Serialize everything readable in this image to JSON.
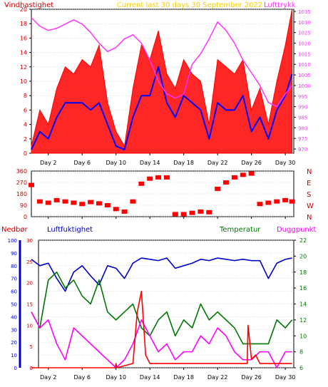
{
  "header": {
    "title": "Current last 30 days 30 September 2022",
    "left_label": "Vindhastighet",
    "right_label": "Lufttrykk"
  },
  "mid_labels": {
    "nedbor": "Nedbør",
    "luftfuktighet": "Luftfuktighet",
    "temperatur": "Temperatur",
    "duggpunkt": "Duggpunkt"
  },
  "colors": {
    "wind_gust": "#ff0000",
    "wind_avg": "#0000ff",
    "pressure": "#ff33ff",
    "direction": "#ff0000",
    "rain": "#ff0000",
    "humidity": "#0000cc",
    "temperature": "#007700",
    "dewpoint": "#ff00ff",
    "title": "#ffcc00",
    "axis": "#000000",
    "grid": "#bbbbbb"
  },
  "chart_data": [
    {
      "type": "line",
      "panel": "wind-pressure",
      "x_ticks": [
        "Day 2",
        "Day 6",
        "Day 10",
        "Day 14",
        "Day 18",
        "Day 22",
        "Day 26",
        "Day 30"
      ],
      "x_tick_days": [
        2,
        6,
        10,
        14,
        18,
        22,
        26,
        30
      ],
      "xlim": [
        0,
        31
      ],
      "y_left": {
        "label": "Vindhastighet",
        "ticks": [
          "0",
          "2",
          "4",
          "6",
          "8",
          "10",
          "12",
          "14",
          "16",
          "18",
          "20"
        ],
        "ylim": [
          0,
          20
        ]
      },
      "y_right": {
        "label": "Lufttrykk",
        "ticks": [
          "970",
          "975",
          "980",
          "985",
          "990",
          "995",
          "1000",
          "1005",
          "1010",
          "1015",
          "1020",
          "1025",
          "1030",
          "1035"
        ],
        "ylim": [
          968,
          1036
        ]
      },
      "series": [
        {
          "name": "Vindhastighet (gust)",
          "color": "#ff0000",
          "x": [
            0,
            1,
            2,
            3,
            4,
            5,
            6,
            7,
            8,
            9,
            10,
            11,
            12,
            13,
            14,
            15,
            16,
            17,
            18,
            19,
            20,
            21,
            22,
            23,
            24,
            25,
            26,
            27,
            28,
            29,
            30,
            30.8
          ],
          "y": [
            1,
            6,
            4,
            9,
            12,
            11,
            13,
            12,
            15,
            7,
            3,
            1,
            9,
            15,
            13,
            17,
            11,
            9,
            13,
            11,
            10,
            4,
            13,
            12,
            11,
            13,
            6,
            9,
            4,
            10,
            15,
            20
          ]
        },
        {
          "name": "Vindhastighet (avg)",
          "color": "#0000ff",
          "x": [
            0,
            1,
            2,
            3,
            4,
            5,
            6,
            7,
            8,
            9,
            10,
            11,
            12,
            13,
            14,
            15,
            16,
            17,
            18,
            19,
            20,
            21,
            22,
            23,
            24,
            25,
            26,
            27,
            28,
            29,
            30,
            30.8
          ],
          "y": [
            0.5,
            3,
            2,
            5,
            7,
            7,
            7,
            6,
            7,
            4,
            1,
            0.5,
            5,
            8,
            8,
            12,
            7,
            5,
            8,
            7,
            6,
            2,
            7,
            6,
            6,
            8,
            3,
            5,
            2,
            6,
            8,
            11
          ]
        },
        {
          "name": "Lufttrykk",
          "color": "#ff33ff",
          "x": [
            0,
            1,
            2,
            3,
            4,
            5,
            6,
            7,
            8,
            9,
            10,
            11,
            12,
            13,
            14,
            15,
            16,
            17,
            18,
            19,
            20,
            21,
            22,
            23,
            24,
            25,
            26,
            27,
            28,
            29,
            30,
            30.8
          ],
          "y": [
            1032,
            1028,
            1026,
            1027,
            1029,
            1031,
            1029,
            1025,
            1020,
            1016,
            1018,
            1022,
            1024,
            1020,
            1012,
            1002,
            996,
            994,
            996,
            1010,
            1015,
            1022,
            1030,
            1026,
            1020,
            1012,
            1006,
            1000,
            992,
            990,
            996,
            1000
          ]
        }
      ]
    },
    {
      "type": "scatter",
      "panel": "wind-direction",
      "y_ticks": [
        "0",
        "90",
        "180",
        "270",
        "360"
      ],
      "ylim": [
        0,
        360
      ],
      "compass": [
        "N",
        "W",
        "S",
        "E",
        "N"
      ],
      "series": [
        {
          "name": "Vindretning",
          "color": "#ff0000",
          "x": [
            0,
            1,
            2,
            3,
            4,
            5,
            6,
            7,
            8,
            9,
            10,
            11,
            12,
            13,
            14,
            15,
            16,
            17,
            18,
            19,
            20,
            21,
            22,
            23,
            24,
            25,
            26,
            27,
            28,
            29,
            30,
            30.8
          ],
          "y": [
            250,
            120,
            110,
            130,
            120,
            110,
            100,
            115,
            105,
            90,
            60,
            40,
            120,
            260,
            300,
            310,
            310,
            20,
            20,
            30,
            40,
            35,
            220,
            270,
            310,
            330,
            340,
            100,
            110,
            120,
            130,
            120
          ]
        }
      ]
    },
    {
      "type": "line",
      "panel": "temp-humidity-rain",
      "y_left_rain": {
        "label": "Nedbør",
        "ticks": [
          "0",
          "5",
          "10",
          "15",
          "20",
          "25",
          "30"
        ],
        "ylim": [
          0,
          30
        ]
      },
      "y_left_humidity": {
        "label": "Luftfuktighet",
        "ticks": [
          "0",
          "10",
          "20",
          "30",
          "40",
          "50",
          "60",
          "70",
          "80",
          "90",
          "100"
        ],
        "ylim": [
          0,
          100
        ]
      },
      "y_right_temp": {
        "label": "Temperatur",
        "ticks": [
          "6",
          "8",
          "10",
          "12",
          "14",
          "16",
          "18",
          "20",
          "22"
        ],
        "ylim": [
          6,
          22
        ]
      },
      "series": [
        {
          "name": "Luftfuktighet",
          "color": "#0000cc",
          "axis": "humidity",
          "x": [
            0,
            1,
            2,
            3,
            4,
            5,
            6,
            7,
            8,
            9,
            10,
            11,
            12,
            13,
            14,
            15,
            16,
            17,
            18,
            19,
            20,
            21,
            22,
            23,
            24,
            25,
            26,
            27,
            28,
            29,
            30,
            30.8
          ],
          "y": [
            85,
            80,
            82,
            70,
            60,
            75,
            80,
            72,
            65,
            80,
            78,
            70,
            82,
            86,
            85,
            84,
            86,
            78,
            80,
            82,
            85,
            84,
            86,
            85,
            84,
            85,
            84,
            84,
            70,
            82,
            85,
            86
          ]
        },
        {
          "name": "Temperatur",
          "color": "#007700",
          "axis": "temp",
          "x": [
            0,
            1,
            2,
            3,
            4,
            5,
            6,
            7,
            8,
            9,
            10,
            11,
            12,
            13,
            14,
            15,
            16,
            17,
            18,
            19,
            20,
            21,
            22,
            23,
            24,
            25,
            26,
            27,
            28,
            29,
            30,
            30.8
          ],
          "y": [
            13,
            11,
            17,
            18,
            16,
            17,
            15,
            14,
            17,
            13,
            12,
            13,
            14,
            11,
            10,
            12,
            13,
            10,
            12,
            11,
            14,
            12,
            13,
            12,
            11,
            9,
            9,
            9,
            9,
            12,
            11,
            12
          ]
        },
        {
          "name": "Duggpunkt",
          "color": "#ff00ff",
          "axis": "temp",
          "x": [
            0,
            1,
            2,
            3,
            4,
            5,
            6,
            7,
            8,
            9,
            10,
            11,
            12,
            13,
            14,
            15,
            16,
            17,
            18,
            19,
            20,
            21,
            22,
            23,
            24,
            25,
            26,
            27,
            28,
            29,
            30,
            30.8
          ],
          "y": [
            13,
            11,
            12,
            9,
            7,
            11,
            10,
            9,
            8,
            7,
            6,
            7,
            9,
            12,
            10,
            8,
            9,
            7,
            8,
            8,
            10,
            9,
            11,
            10,
            8,
            7,
            7,
            8,
            8,
            6,
            8,
            8
          ]
        },
        {
          "name": "Nedbør",
          "color": "#ff0000",
          "axis": "rain",
          "x": [
            0,
            5,
            9.9,
            10,
            10.1,
            12,
            12.5,
            13,
            13.5,
            14,
            20,
            25.5,
            25.6,
            26,
            26.5,
            27,
            30.8
          ],
          "y": [
            0,
            0,
            0,
            1,
            0,
            1,
            13,
            18,
            3,
            1,
            1,
            1,
            10,
            2,
            3,
            1,
            1
          ]
        }
      ]
    }
  ]
}
